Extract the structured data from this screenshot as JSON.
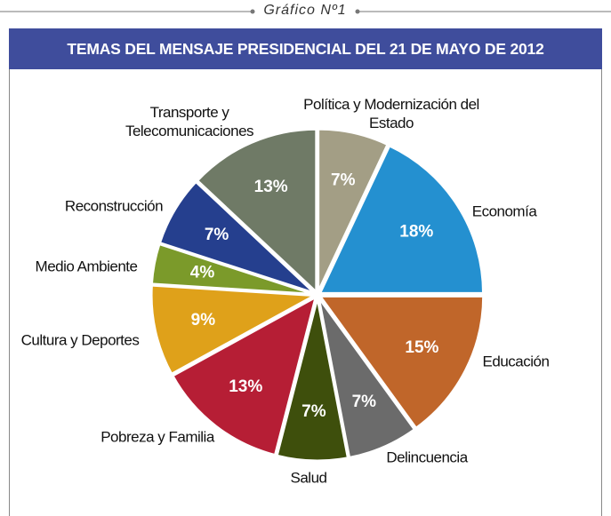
{
  "chart_data": {
    "type": "pie",
    "caption": "Gráfico Nº1",
    "title": "TEMAS DEL MENSAJE PRESIDENCIAL DEL 21 DE MAYO DE 2012",
    "categories": [
      "Política y Modernización del Estado",
      "Economía",
      "Educación",
      "Delincuencia",
      "Salud",
      "Pobreza y Familia",
      "Cultura y Deportes",
      "Medio Ambiente",
      "Reconstrucción",
      "Transporte y Telecomunicaciones"
    ],
    "values": [
      7,
      18,
      15,
      7,
      7,
      13,
      9,
      4,
      7,
      13
    ],
    "value_labels": [
      "7%",
      "18%",
      "15%",
      "7%",
      "7%",
      "13%",
      "9%",
      "4%",
      "7%",
      "13%"
    ],
    "colors": [
      "#a39e85",
      "#2490d0",
      "#c0662a",
      "#6b6b6b",
      "#3e4f0c",
      "#b61e35",
      "#dfa11a",
      "#7b9a2a",
      "#253f8e",
      "#6f7a66"
    ]
  }
}
